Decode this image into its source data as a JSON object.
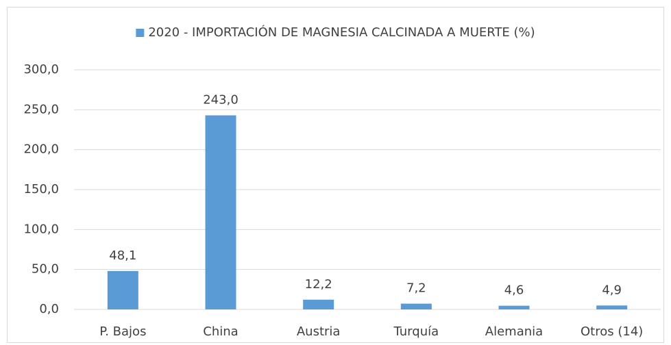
{
  "chart_data": {
    "type": "bar",
    "categories": [
      "P. Bajos",
      "China",
      "Austria",
      "Turquía",
      "Alemania",
      "Otros (14)"
    ],
    "series": [
      {
        "name": "2020 - IMPORTACIÓN DE MAGNESIA CALCINADA A MUERTE (%)",
        "color": "#5b9bd5",
        "values": [
          48.1,
          243.0,
          12.2,
          7.2,
          4.6,
          4.9
        ],
        "value_labels": [
          "48,1",
          "243,0",
          "12,2",
          "7,2",
          "4,6",
          "4,9"
        ]
      }
    ],
    "ylim": [
      0,
      300
    ],
    "yticks": [
      {
        "value": 0,
        "label": "0,0"
      },
      {
        "value": 50,
        "label": "50,0"
      },
      {
        "value": 100,
        "label": "100,0"
      },
      {
        "value": 150,
        "label": "150,0"
      },
      {
        "value": 200,
        "label": "200,0"
      },
      {
        "value": 250,
        "label": "250,0"
      },
      {
        "value": 300,
        "label": "300,0"
      }
    ],
    "grid": true,
    "legend": "top"
  }
}
